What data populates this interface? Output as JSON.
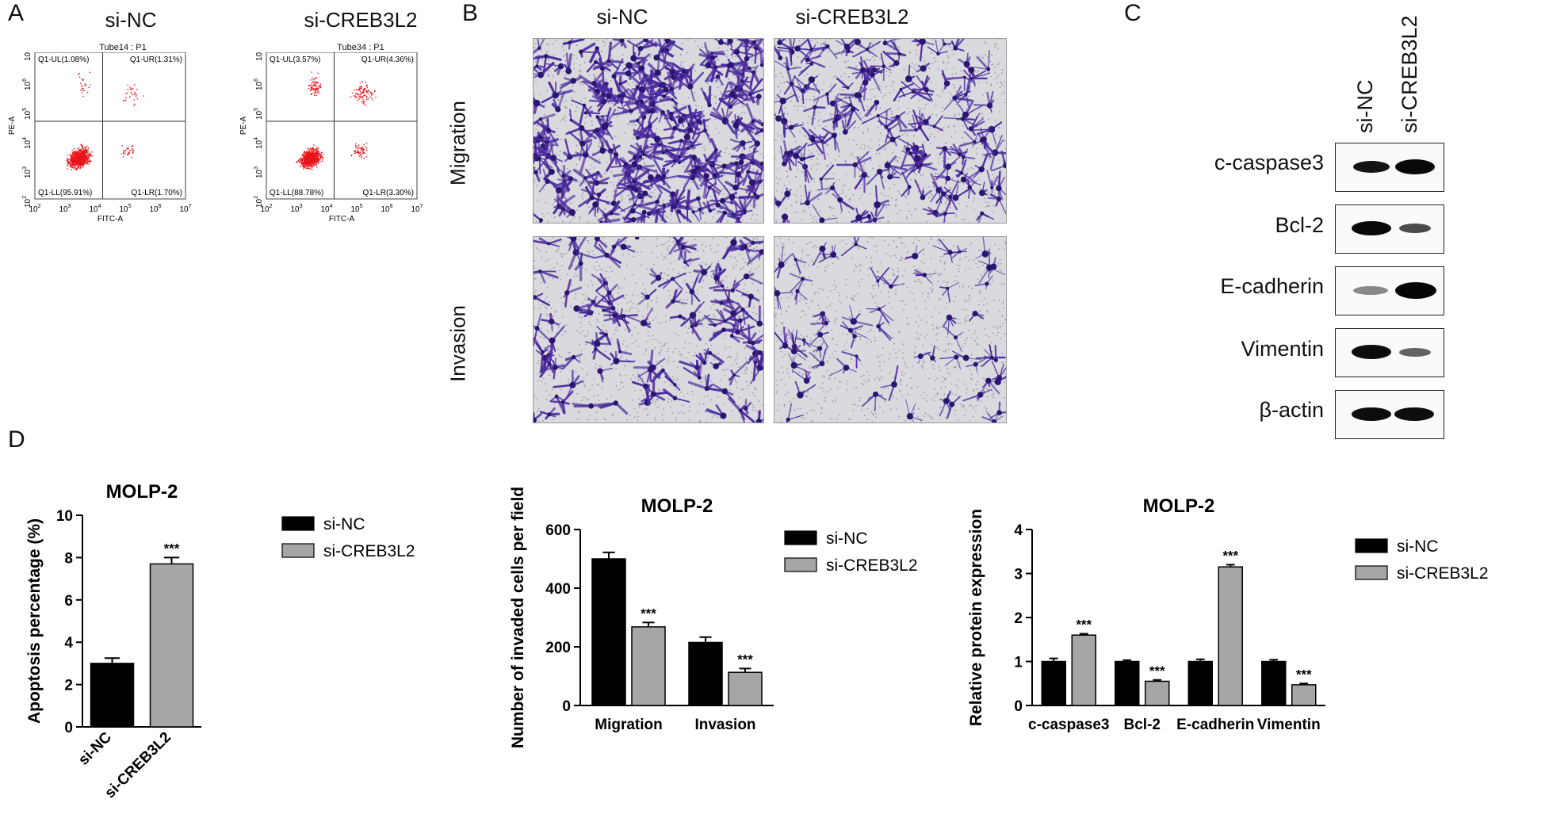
{
  "panelA": {
    "letter": "A",
    "plots": [
      {
        "title": "si-NC",
        "tube": "Tube14 : P1",
        "ul": "Q1-UL(1.08%)",
        "ur": "Q1-UR(1.31%)",
        "ll": "Q1-LL(95.91%)",
        "lr": "Q1-LR(1.70%)",
        "xlabel": "FITC-A",
        "ylabel": "PE-A",
        "quadrants_pct": {
          "UL": 1.08,
          "UR": 1.31,
          "LL": 95.91,
          "LR": 1.7
        }
      },
      {
        "title": "si-CREB3L2",
        "tube": "Tube34 : P1",
        "ul": "Q1-UL(3.57%)",
        "ur": "Q1-UR(4.36%)",
        "ll": "Q1-LL(88.78%)",
        "lr": "Q1-LR(3.30%)",
        "xlabel": "FITC-A",
        "ylabel": "PE-A",
        "quadrants_pct": {
          "UL": 3.57,
          "UR": 4.36,
          "LL": 88.78,
          "LR": 3.3
        }
      }
    ],
    "xticks": [
      "10",
      "10",
      "10",
      "10",
      "10",
      "10"
    ],
    "xtick_exp": [
      "2",
      "3",
      "4",
      "5",
      "6",
      "7"
    ],
    "yticks_exp": [
      "7",
      "6",
      "5",
      "4",
      "3",
      "2"
    ],
    "dot_color": "#e8141c"
  },
  "panelB": {
    "letter": "B",
    "columns": [
      "si-NC",
      "si-CREB3L2"
    ],
    "rows": [
      "Migration",
      "Invasion"
    ],
    "stain_color": "#4b2a9e"
  },
  "panelC": {
    "letter": "C",
    "lanes": [
      "si-NC",
      "si-CREB3L2"
    ],
    "proteins": [
      "c-caspase3",
      "Bcl-2",
      "E-cadherin",
      "Vimentin",
      "β-actin"
    ]
  },
  "panelD": {
    "letter": "D"
  },
  "chart_data": [
    {
      "type": "bar",
      "title": "MOLP-2",
      "xlabel": "",
      "ylabel": "Apoptosis percentage (%)",
      "categories": [
        "si-NC",
        "si-CREB3L2"
      ],
      "values": [
        3.0,
        7.7
      ],
      "errors": [
        0.25,
        0.3
      ],
      "ylim": [
        0,
        10
      ],
      "yticks": [
        0,
        2,
        4,
        6,
        8,
        10
      ],
      "significance": [
        "",
        "***"
      ],
      "colors": [
        "#000000",
        "#a6a6a6"
      ],
      "legend": [
        "si-NC",
        "si-CREB3L2"
      ],
      "legend_position": "right"
    },
    {
      "type": "bar",
      "title": "MOLP-2",
      "xlabel": "",
      "ylabel": "Number of invaded cells per field",
      "categories": [
        "Migration",
        "Invasion"
      ],
      "series": [
        {
          "name": "si-NC",
          "values": [
            500,
            215
          ],
          "errors": [
            22,
            18
          ],
          "color": "#000000",
          "significance": [
            "",
            ""
          ]
        },
        {
          "name": "si-CREB3L2",
          "values": [
            268,
            113
          ],
          "errors": [
            15,
            13
          ],
          "color": "#a6a6a6",
          "significance": [
            "***",
            "***"
          ]
        }
      ],
      "ylim": [
        0,
        600
      ],
      "yticks": [
        0,
        200,
        400,
        600
      ],
      "legend_position": "right"
    },
    {
      "type": "bar",
      "title": "MOLP-2",
      "xlabel": "",
      "ylabel": "Relative protein expression",
      "categories": [
        "c-caspase3",
        "Bcl-2",
        "E-cadherin",
        "Vimentin"
      ],
      "series": [
        {
          "name": "si-NC",
          "values": [
            1.0,
            1.0,
            1.0,
            1.0
          ],
          "errors": [
            0.07,
            0.03,
            0.05,
            0.04
          ],
          "color": "#000000",
          "significance": [
            "",
            "",
            "",
            ""
          ]
        },
        {
          "name": "si-CREB3L2",
          "values": [
            1.6,
            0.55,
            3.15,
            0.47
          ],
          "errors": [
            0.03,
            0.03,
            0.05,
            0.03
          ],
          "color": "#a6a6a6",
          "significance": [
            "***",
            "***",
            "***",
            "***"
          ]
        }
      ],
      "ylim": [
        0,
        4
      ],
      "yticks": [
        0,
        1,
        2,
        3,
        4
      ],
      "legend_position": "right"
    }
  ]
}
